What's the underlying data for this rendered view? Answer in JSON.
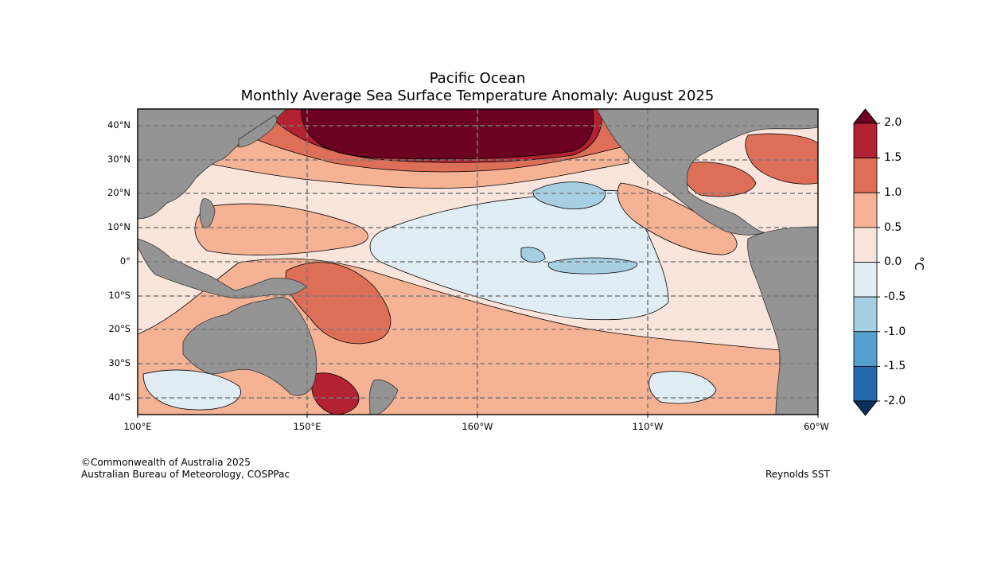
{
  "title": "Pacific Ocean",
  "subtitle": "Monthly Average Sea Surface Temperature Anomaly: August 2025",
  "map": {
    "region": "Pacific Ocean",
    "lon_range": [
      "100°E",
      "60°W"
    ],
    "lat_range": [
      "45°S",
      "45°N"
    ],
    "lat_ticks": [
      "40°N",
      "30°N",
      "20°N",
      "10°N",
      "0°",
      "10°S",
      "20°S",
      "30°S",
      "40°S"
    ],
    "lon_ticks": [
      "100°E",
      "150°E",
      "160°W",
      "110°W",
      "60°W"
    ],
    "land_color": "#949494",
    "gridlines": "dashed"
  },
  "colorbar": {
    "unit": "°C",
    "labels": [
      "2.0",
      "1.5",
      "1.0",
      "0.5",
      "0.0",
      "-0.5",
      "-1.0",
      "-1.5",
      "-2.0"
    ],
    "colors": [
      "#6b0020",
      "#b32232",
      "#dd6e58",
      "#f5b294",
      "#f9e5dc",
      "#e1edf4",
      "#a7cfe3",
      "#559fcd",
      "#2468ad",
      "#0b2f5e"
    ],
    "extend": "both"
  },
  "footer": {
    "copyright": "©Commonwealth of Australia 2025",
    "organization": "Australian Bureau of Meteorology, COSPPac",
    "source": "Reynolds SST"
  }
}
